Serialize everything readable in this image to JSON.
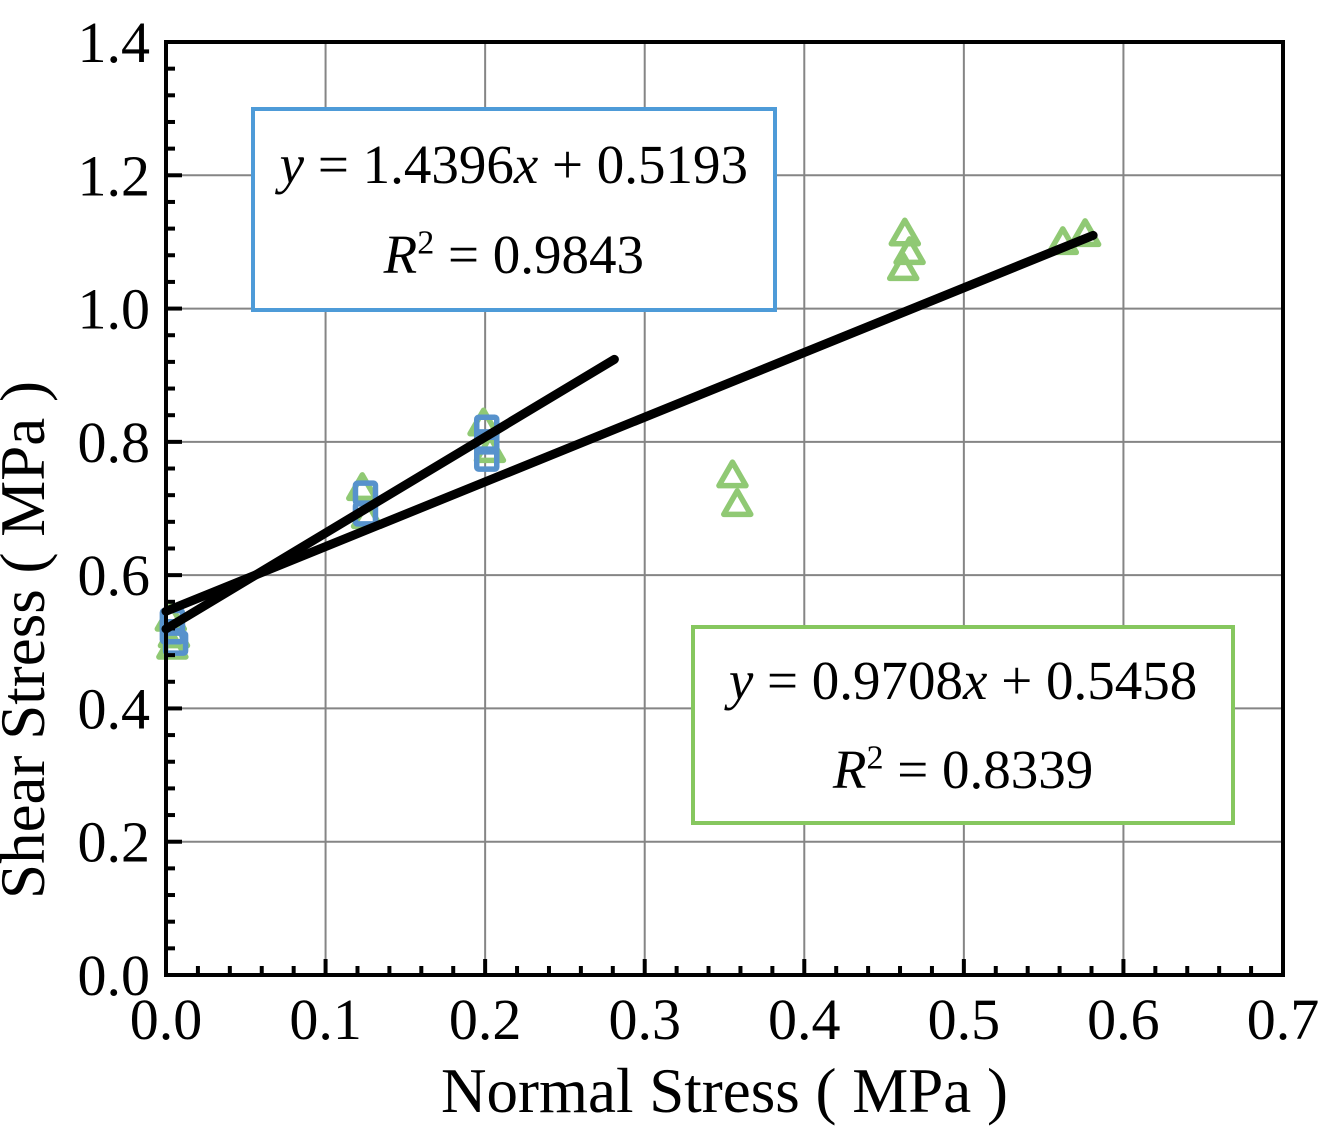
{
  "chart_data": {
    "type": "scatter",
    "title": "",
    "xlabel": "Normal Stress ( MPa )",
    "ylabel": "Shear Stress ( MPa )",
    "xlim": [
      0.0,
      0.7
    ],
    "ylim": [
      0.0,
      1.4
    ],
    "x_ticks": [
      0.0,
      0.1,
      0.2,
      0.3,
      0.4,
      0.5,
      0.6,
      0.7
    ],
    "x_tick_labels": [
      "0.0",
      "0.1",
      "0.2",
      "0.3",
      "0.4",
      "0.5",
      "0.6",
      "0.7"
    ],
    "y_ticks": [
      0.0,
      0.2,
      0.4,
      0.6,
      0.8,
      1.0,
      1.2,
      1.4
    ],
    "y_tick_labels": [
      "0.0",
      "0.2",
      "0.4",
      "0.6",
      "0.8",
      "1.0",
      "1.2",
      "1.4"
    ],
    "x_minor_step": 0.02,
    "y_minor_step": 0.04,
    "grid": {
      "show": true,
      "color": "#858585"
    },
    "series": [
      {
        "name": "blue-squares",
        "marker": "square",
        "color": "#5792cc",
        "points": [
          [
            0.004,
            0.532
          ],
          [
            0.004,
            0.515
          ],
          [
            0.006,
            0.498
          ],
          [
            0.125,
            0.723
          ],
          [
            0.125,
            0.692
          ],
          [
            0.201,
            0.822
          ],
          [
            0.201,
            0.8
          ],
          [
            0.201,
            0.774
          ]
        ]
      },
      {
        "name": "green-triangles",
        "marker": "triangle",
        "color": "#90c974",
        "points": [
          [
            0.003,
            0.535
          ],
          [
            0.005,
            0.51
          ],
          [
            0.004,
            0.493
          ],
          [
            0.123,
            0.731
          ],
          [
            0.126,
            0.689
          ],
          [
            0.199,
            0.828
          ],
          [
            0.203,
            0.788
          ],
          [
            0.355,
            0.75
          ],
          [
            0.358,
            0.707
          ],
          [
            0.463,
            1.113
          ],
          [
            0.466,
            1.085
          ],
          [
            0.462,
            1.061
          ],
          [
            0.562,
            1.1
          ],
          [
            0.576,
            1.112
          ]
        ]
      }
    ],
    "trendlines": [
      {
        "name": "blue-fit-line",
        "slope": 1.4396,
        "intercept": 0.5193,
        "x_range": [
          0.0,
          0.281
        ],
        "color": "#000000"
      },
      {
        "name": "green-fit-line",
        "slope": 0.9708,
        "intercept": 0.5458,
        "x_range": [
          0.0,
          0.581
        ],
        "color": "#000000"
      }
    ],
    "annotations": [
      {
        "name": "blue-fit-equation-box",
        "border_color": "#4e9bd8",
        "equation": "y = 1.4396x + 0.5193",
        "r_squared": "R2 = 0.9843",
        "lines": [
          [
            {
              "t": "y",
              "i": true
            },
            {
              "t": " = 1.4396"
            },
            {
              "t": "x",
              "i": true
            },
            {
              "t": " + 0.5193"
            }
          ],
          [
            {
              "t": "R",
              "i": true
            },
            {
              "t": "2",
              "sup": true
            },
            {
              "t": " = 0.9843"
            }
          ]
        ],
        "rect_data": {
          "x0": 0.053,
          "x1": 0.383,
          "y0": 0.995,
          "y1": 1.302
        }
      },
      {
        "name": "green-fit-equation-box",
        "border_color": "#86c75f",
        "equation": "y = 0.9708x + 0.5458",
        "r_squared": "R2 = 0.8339",
        "lines": [
          [
            {
              "t": "y",
              "i": true
            },
            {
              "t": " = 0.9708"
            },
            {
              "t": "x",
              "i": true
            },
            {
              "t": " + 0.5458"
            }
          ],
          [
            {
              "t": "R",
              "i": true
            },
            {
              "t": "2",
              "sup": true
            },
            {
              "t": " = 0.8339"
            }
          ]
        ],
        "rect_data": {
          "x0": 0.329,
          "x1": 0.67,
          "y0": 0.225,
          "y1": 0.525
        }
      }
    ]
  }
}
